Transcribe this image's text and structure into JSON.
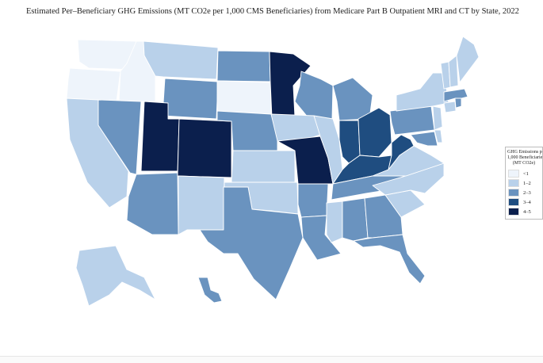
{
  "title": "Estimated Per–Beneficiary GHG Emissions (MT CO2e per 1,000 CMS Beneficiaries) from Medicare Part B Outpatient MRI and CT by State, 2022",
  "legend": {
    "title_line1": "GHG Emissions per",
    "title_line2": "1,000 Beneficiaries",
    "title_line3": "(MT CO2e)",
    "bins": [
      {
        "label": "<1",
        "color": "#eef4fb"
      },
      {
        "label": "1–2",
        "color": "#b9d1ea"
      },
      {
        "label": "2–3",
        "color": "#6a93bf"
      },
      {
        "label": "3–4",
        "color": "#1f4d80"
      },
      {
        "label": "4–5",
        "color": "#0b1f4d"
      }
    ]
  },
  "chart_data": {
    "type": "choropleth",
    "title": "Estimated Per–Beneficiary GHG Emissions (MT CO2e per 1,000 CMS Beneficiaries) from Medicare Part B Outpatient MRI and CT by State, 2022",
    "legend_title": "GHG Emissions per 1,000 Beneficiaries (MT CO2e)",
    "bins": [
      "<1",
      "1–2",
      "2–3",
      "3–4",
      "4–5"
    ],
    "states": {
      "WA": "<1",
      "OR": "<1",
      "ID": "<1",
      "SD": "<1",
      "WY_": null,
      "MT": "1–2",
      "CA": "1–2",
      "NM": "1–2",
      "KS": "1–2",
      "OK": "1–2",
      "IA": "1–2",
      "IL": "1–2",
      "MS": "1–2",
      "VA": "1–2",
      "NC": "1–2",
      "SC": "1–2",
      "NY": "1–2",
      "VT": "1–2",
      "NH": "1–2",
      "ME": "1–2",
      "NJ": "1–2",
      "CT": "1–2",
      "DE": "1–2",
      "AK": "1–2",
      "NV": "2–3",
      "WY": "2–3",
      "ND": "2–3",
      "NE": "2–3",
      "AZ": "2–3",
      "TX": "2–3",
      "AR": "2–3",
      "LA": "2–3",
      "WI": "2–3",
      "MI": "2–3",
      "TN": "2–3",
      "AL": "2–3",
      "GA": "2–3",
      "FL": "2–3",
      "PA": "2–3",
      "MA": "2–3",
      "RI": "2–3",
      "MD": "2–3",
      "HI": "2–3",
      "IN": "3–4",
      "OH": "3–4",
      "KY": "3–4",
      "WV": "3–4",
      "MN": "4–5",
      "UT": "4–5",
      "CO": "4–5",
      "MO": "4–5"
    }
  }
}
